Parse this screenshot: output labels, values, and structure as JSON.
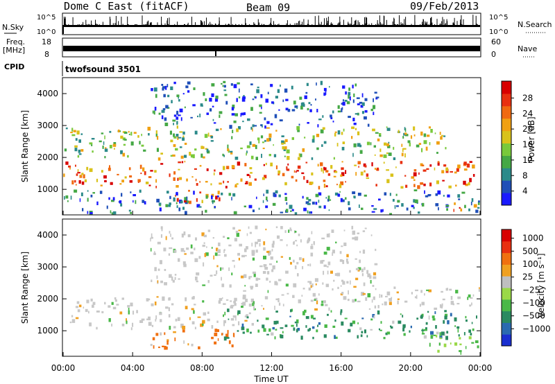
{
  "header": {
    "station": "Dome C East (fitACF)",
    "beam": "Beam 09",
    "date": "09/Feb/2013"
  },
  "nsky": {
    "label": "N.Sky",
    "ticks": [
      "10^5",
      "10^0"
    ],
    "right_label": "N.Search",
    "right_ticks": [
      "10^5",
      "10^0"
    ]
  },
  "freq": {
    "label_line1": "Freq.",
    "label_line2": "[MHz]",
    "ticks": [
      18,
      8
    ],
    "ylim": [
      8,
      18
    ],
    "right_label": "Nave",
    "right_ticks": [
      60,
      0
    ]
  },
  "cpid": {
    "label": "CPID",
    "value": "twofsound 3501"
  },
  "chart_data": [
    {
      "type": "heatmap",
      "quantity": "Power",
      "ylabel": "Slant Range [km]",
      "yticks": [
        1000,
        2000,
        3000,
        4000
      ],
      "ylim": [
        200,
        4500
      ],
      "xlim": [
        0,
        24
      ],
      "colorbar": {
        "label": "Power [dB]",
        "ticks": [
          4,
          8,
          12,
          16,
          20,
          24,
          28
        ],
        "colors": [
          "#1a1aff",
          "#1f4fb8",
          "#2c8a8a",
          "#45a845",
          "#79c93b",
          "#d9c21a",
          "#f0a012",
          "#f06a10",
          "#e83010",
          "#d80000"
        ]
      },
      "bands": [
        {
          "t0": 0,
          "t1": 24,
          "r0": 1100,
          "r1": 1900,
          "level": "high"
        },
        {
          "t0": 6,
          "t1": 9,
          "r0": 600,
          "r1": 1000,
          "level": "high"
        },
        {
          "t0": 0,
          "t1": 22,
          "r0": 2000,
          "r1": 3000,
          "level": "mid"
        },
        {
          "t0": 5,
          "t1": 18,
          "r0": 3000,
          "r1": 4400,
          "level": "low"
        },
        {
          "t0": 22,
          "t1": 24,
          "r0": 300,
          "r1": 600,
          "level": "high"
        },
        {
          "t0": 0,
          "t1": 24,
          "r0": 250,
          "r1": 1000,
          "level": "low"
        }
      ]
    },
    {
      "type": "heatmap",
      "quantity": "Velocity",
      "ylabel": "Slant Range [km]",
      "yticks": [
        1000,
        2000,
        3000,
        4000
      ],
      "ylim": [
        200,
        4500
      ],
      "xlim": [
        0,
        24
      ],
      "xticks": [
        "00:00",
        "04:00",
        "08:00",
        "12:00",
        "16:00",
        "20:00",
        "00:00"
      ],
      "xlabel": "Time UT",
      "colorbar": {
        "label": "Velocity [m s⁻¹]",
        "ticks": [
          "1000",
          "500",
          "100",
          "25",
          "−25",
          "−100",
          "−500",
          "−1000"
        ],
        "colors": [
          "#1a2fd0",
          "#2a6ab0",
          "#2a8a60",
          "#4ab848",
          "#9ad848",
          "#bfbfbf",
          "#f0a020",
          "#f07010",
          "#e83010",
          "#d80000"
        ]
      },
      "bands": [
        {
          "t0": 0,
          "t1": 11,
          "r0": 1100,
          "r1": 2100,
          "level": "grey"
        },
        {
          "t0": 5,
          "t1": 10,
          "r0": 500,
          "r1": 1100,
          "level": "orange"
        },
        {
          "t0": 9,
          "t1": 24,
          "r0": 800,
          "r1": 1700,
          "level": "green"
        },
        {
          "t0": 10,
          "t1": 24,
          "r0": 1700,
          "r1": 2400,
          "level": "grey"
        },
        {
          "t0": 5,
          "t1": 18,
          "r0": 2400,
          "r1": 4300,
          "level": "grey"
        },
        {
          "t0": 21,
          "t1": 24,
          "r0": 300,
          "r1": 900,
          "level": "lightgreen"
        }
      ]
    }
  ]
}
